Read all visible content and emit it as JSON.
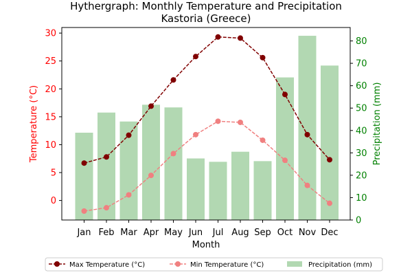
{
  "chart_data": {
    "type": "bar+line",
    "title": "Hythergraph: Monthly Temperature and Precipitation",
    "subtitle": "Kastoria (Greece)",
    "xlabel": "Month",
    "ylabel_left": "Temperature (°C)",
    "ylabel_right": "Precipitation (mm)",
    "categories": [
      "Jan",
      "Feb",
      "Mar",
      "Apr",
      "May",
      "Jun",
      "Jul",
      "Aug",
      "Sep",
      "Oct",
      "Nov",
      "Dec"
    ],
    "ylim_left": [
      -3.5,
      31
    ],
    "yticks_left": [
      0,
      5,
      10,
      15,
      20,
      25,
      30
    ],
    "ylim_right": [
      0,
      86
    ],
    "yticks_right": [
      0,
      10,
      20,
      30,
      40,
      50,
      60,
      70,
      80
    ],
    "series": [
      {
        "name": "Max Temperature (°C)",
        "kind": "line",
        "axis": "left",
        "color": "#800000",
        "linestyle": "dashed",
        "values": [
          6.7,
          7.8,
          11.7,
          16.9,
          21.6,
          25.8,
          29.3,
          29.1,
          25.6,
          19.0,
          11.8,
          7.3
        ]
      },
      {
        "name": "Min Temperature (°C)",
        "kind": "line",
        "axis": "left",
        "color": "#f08080",
        "linestyle": "dashed",
        "values": [
          -1.9,
          -1.3,
          1.0,
          4.5,
          8.4,
          11.8,
          14.2,
          14.0,
          10.8,
          7.2,
          2.7,
          -0.5
        ]
      },
      {
        "name": "Precipitation (mm)",
        "kind": "bar",
        "axis": "right",
        "color": "#b2d8b2",
        "values": [
          39,
          48,
          44,
          51.5,
          50.3,
          27.5,
          26,
          30.5,
          26.3,
          63.7,
          82.3,
          69
        ]
      }
    ],
    "legend": "bottom",
    "grid": false,
    "colors": {
      "left_axis": "#ff0000",
      "right_axis": "#008000"
    }
  }
}
